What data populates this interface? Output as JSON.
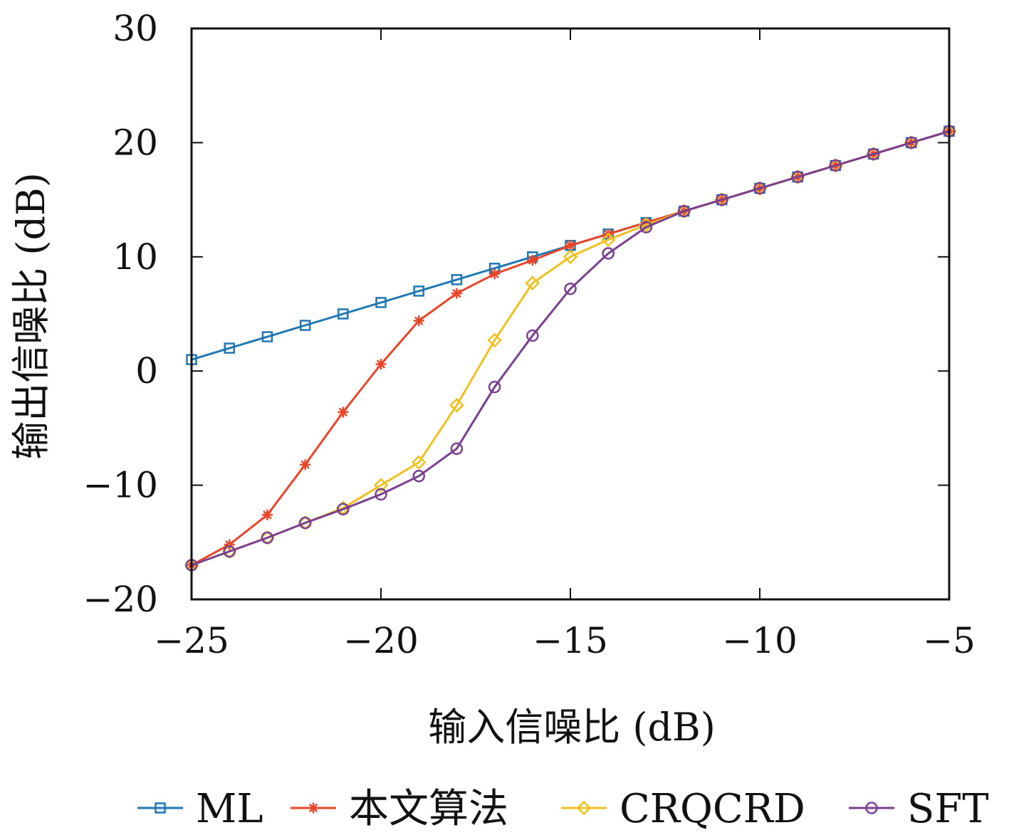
{
  "chart_data": {
    "type": "line",
    "xlabel": "输入信噪比 (dB)",
    "ylabel": "输出信噪比 (dB)",
    "xlim": [
      -25,
      -5
    ],
    "ylim": [
      -20,
      30
    ],
    "xticks": [
      -25,
      -20,
      -15,
      -10,
      -5
    ],
    "yticks": [
      -20,
      -10,
      0,
      10,
      20,
      30
    ],
    "xtick_labels": [
      "−25",
      "−20",
      "−15",
      "−10",
      "−5"
    ],
    "ytick_labels": [
      "−20",
      "−10",
      "0",
      "10",
      "20",
      "30"
    ],
    "grid": false,
    "legend_position": "bottom",
    "series": [
      {
        "name": "ML",
        "color": "#1f77b4",
        "marker": "square",
        "x": [
          -25,
          -24,
          -23,
          -22,
          -21,
          -20,
          -19,
          -18,
          -17,
          -16,
          -15,
          -14,
          -13,
          -12,
          -11,
          -10,
          -9,
          -8,
          -7,
          -6,
          -5
        ],
        "y": [
          1,
          2,
          3,
          4,
          5,
          6,
          7,
          8,
          9,
          10,
          11,
          12,
          13,
          14,
          15,
          16,
          17,
          18,
          19,
          20,
          21
        ]
      },
      {
        "name": "本文算法",
        "color": "#e8462a",
        "marker": "star",
        "x": [
          -25,
          -24,
          -23,
          -22,
          -21,
          -20,
          -19,
          -18,
          -17,
          -16,
          -15,
          -14,
          -13,
          -12,
          -11,
          -10,
          -9,
          -8,
          -7,
          -6,
          -5
        ],
        "y": [
          -17,
          -15.2,
          -12.6,
          -8.2,
          -3.6,
          0.6,
          4.4,
          6.8,
          8.5,
          9.7,
          11,
          12,
          13,
          14,
          15,
          16,
          17,
          18,
          19,
          20,
          21
        ]
      },
      {
        "name": "CRQCRD",
        "color": "#f0c020",
        "marker": "diamond",
        "x": [
          -25,
          -24,
          -23,
          -22,
          -21,
          -20,
          -19,
          -18,
          -17,
          -16,
          -15,
          -14,
          -13,
          -12,
          -11,
          -10,
          -9,
          -8,
          -7,
          -6,
          -5
        ],
        "y": [
          -17,
          -15.8,
          -14.6,
          -13.3,
          -12,
          -10,
          -8,
          -3,
          2.7,
          7.7,
          10,
          11.5,
          12.8,
          14,
          15,
          16,
          17,
          18,
          19,
          20,
          21
        ]
      },
      {
        "name": "SFT",
        "color": "#7a3f8f",
        "marker": "circle",
        "x": [
          -25,
          -24,
          -23,
          -22,
          -21,
          -20,
          -19,
          -18,
          -17,
          -16,
          -15,
          -14,
          -13,
          -12,
          -11,
          -10,
          -9,
          -8,
          -7,
          -6,
          -5
        ],
        "y": [
          -17,
          -15.8,
          -14.6,
          -13.3,
          -12.1,
          -10.8,
          -9.2,
          -6.8,
          -1.4,
          3.1,
          7.2,
          10.3,
          12.6,
          14,
          15,
          16,
          17,
          18,
          19,
          20,
          21
        ]
      }
    ]
  }
}
